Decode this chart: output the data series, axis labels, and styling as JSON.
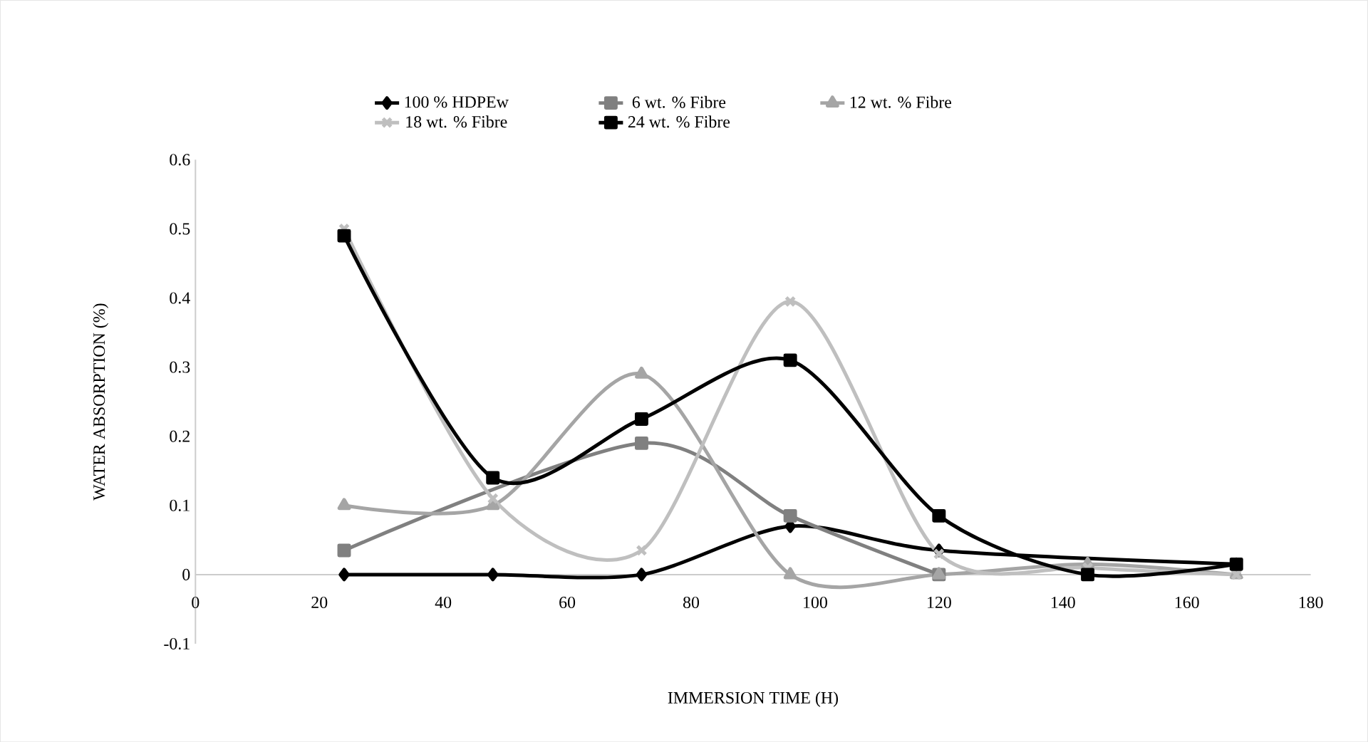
{
  "chart_data": {
    "type": "line",
    "xlabel": "IMMERSION TIME (H)",
    "ylabel": "WATER ABSORPTION (%)",
    "x": [
      24,
      48,
      72,
      96,
      120,
      144,
      168
    ],
    "series": [
      {
        "name": "100 % HDPEw",
        "color": "#000000",
        "marker": "diamond",
        "values": [
          0,
          0,
          0,
          0.07,
          0.035,
          null,
          0.015
        ]
      },
      {
        "name": "6 wt. % Fibre",
        "color": "#808080",
        "marker": "square",
        "values": [
          0.035,
          null,
          0.19,
          0.085,
          0,
          null,
          null
        ]
      },
      {
        "name": "12 wt. % Fibre",
        "color": "#a5a5a5",
        "marker": "triangle",
        "values": [
          0.1,
          0.1,
          0.29,
          0,
          0,
          0.015,
          0
        ]
      },
      {
        "name": "18 wt. % Fibre",
        "color": "#bfbfbf",
        "marker": "cross",
        "values": [
          0.5,
          0.11,
          0.035,
          0.395,
          0.03,
          0.01,
          0
        ]
      },
      {
        "name": "24 wt. % Fibre",
        "color": "#000000",
        "marker": "square",
        "values": [
          0.49,
          0.14,
          0.225,
          0.31,
          0.085,
          0,
          0.015
        ]
      }
    ],
    "xlim": [
      0,
      180
    ],
    "xticks": [
      0,
      20,
      40,
      60,
      80,
      100,
      120,
      140,
      160,
      180
    ],
    "ylim": [
      -0.1,
      0.6
    ],
    "yticks": [
      -0.1,
      0,
      0.1,
      0.2,
      0.3,
      0.4,
      0.5,
      0.6
    ],
    "grid": false,
    "legend": "top",
    "line_style": "solid"
  }
}
